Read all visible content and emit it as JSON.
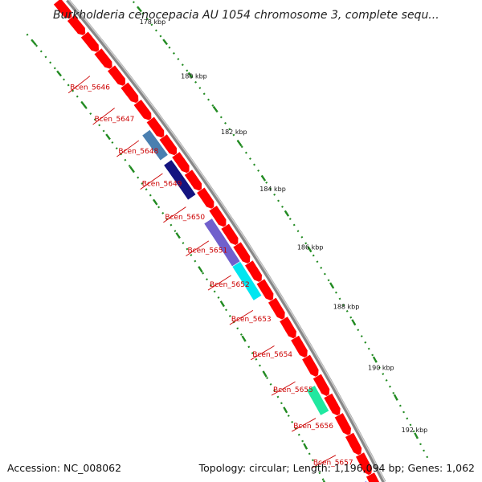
{
  "map": {
    "title": "Burkholderia cenocepacia AU 1054 chromosome 3, complete sequ...",
    "footer_left": "Accession: NC_008062",
    "footer_right": "Topology: circular; Length: 1,196,094 bp; Genes: 1,062",
    "colors": {
      "backbone": "#888888",
      "cds": "#ff0000",
      "tick": "#228B22",
      "label_line": "#cc0000",
      "label_text": "#cc0000"
    },
    "kbp_labels": [
      "176 kbp",
      "178 kbp",
      "180 kbp",
      "182 kbp",
      "184 kbp",
      "186 kbp",
      "188 kbp",
      "190 kbp",
      "192 kbp"
    ],
    "gene_labels": [
      "Bcen_5646",
      "Bcen_5647",
      "Bcen_5648",
      "Bcen_5649",
      "Bcen_5650",
      "Bcen_5651",
      "Bcen_5652",
      "Bcen_5653",
      "Bcen_5654",
      "Bcen_5655",
      "Bcen_5656",
      "Bcen_5657"
    ],
    "feature_colors": [
      "#4a7fb0",
      "#141480",
      "#7060cc",
      "#00e6f0",
      "#20e8a0",
      "#0000ff"
    ]
  }
}
